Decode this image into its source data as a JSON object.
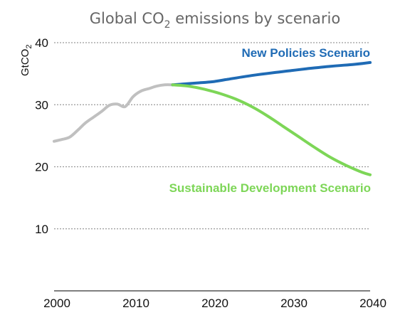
{
  "chart_data": {
    "type": "line",
    "title_main": "Global CO",
    "title_sub": "2",
    "title_rest": " emissions by scenario",
    "ylabel_main": "GtCO",
    "ylabel_sub": "2",
    "xlim": [
      2000,
      2040
    ],
    "ylim": [
      0,
      40
    ],
    "x_ticks": [
      2000,
      2010,
      2020,
      2030,
      2040
    ],
    "y_ticks": [
      10,
      20,
      30,
      40
    ],
    "grid": true,
    "series": [
      {
        "id": "historical",
        "color": "#c0c0c0",
        "x": [
          2000,
          2001,
          2002,
          2003,
          2004,
          2005,
          2006,
          2007,
          2008,
          2009,
          2010,
          2011,
          2012,
          2013,
          2014,
          2015
        ],
        "y": [
          24.1,
          24.4,
          24.8,
          25.9,
          27.1,
          28.0,
          28.9,
          29.9,
          30.1,
          29.7,
          31.3,
          32.2,
          32.6,
          33.0,
          33.2,
          33.2
        ]
      },
      {
        "id": "new-policies",
        "name": "New Policies Scenario",
        "color": "#1f6bb5",
        "x": [
          2015,
          2018,
          2020,
          2022,
          2025,
          2028,
          2030,
          2032,
          2035,
          2038,
          2040
        ],
        "y": [
          33.2,
          33.5,
          33.7,
          34.1,
          34.7,
          35.2,
          35.5,
          35.8,
          36.2,
          36.5,
          36.8
        ]
      },
      {
        "id": "sustainable-development",
        "name": "Sustainable Development Scenario",
        "color": "#7dd657",
        "x": [
          2015,
          2017,
          2019,
          2021,
          2023,
          2025,
          2027,
          2029,
          2031,
          2033,
          2035,
          2037,
          2039,
          2040
        ],
        "y": [
          33.2,
          33.0,
          32.5,
          31.8,
          30.9,
          29.7,
          28.2,
          26.5,
          24.8,
          23.1,
          21.5,
          20.2,
          19.1,
          18.7
        ]
      }
    ]
  }
}
